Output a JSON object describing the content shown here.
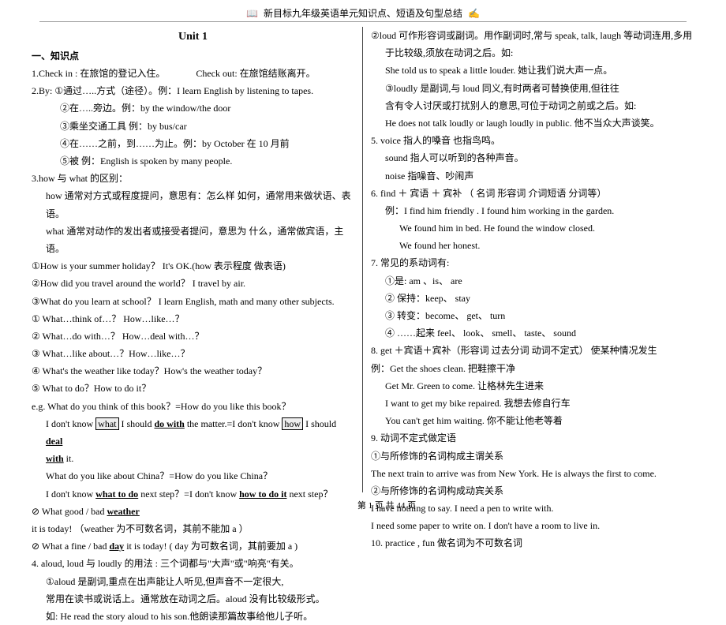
{
  "header": {
    "title": "新目标九年级英语单元知识点、短语及句型总结"
  },
  "unit": "Unit 1",
  "left": {
    "section1": "一、知识点",
    "l1": "1.Check in : 在旅馆的登记入住。",
    "l1b": "Check out: 在旅馆结账离开。",
    "l2": "2.By: ①通过…..方式（途径）。例：I learn English by listening to tapes.",
    "l2a": "②在…..旁边。例：by the window/the door",
    "l2b": "③乘坐交通工具  例：by bus/car",
    "l2c": "④在……之前，到……为止。例：by October 在 10 月前",
    "l2d": "⑤被        例：English is spoken by many people.",
    "l3": "3.how 与 what 的区别：",
    "l3a": "how 通常对方式或程度提问，意思有：怎么样  如何，通常用来做状语、表语。",
    "l3b": "what 通常对动作的发出者或接受者提问，意思为  什么，通常做宾语，主语。",
    "l3c": "①How is your summer holiday？  It's OK.(how 表示程度  做表语)",
    "l3d": "②How did you travel around the world？  I travel by air.",
    "l3e": "③What do you learn at school？   I learn English, math and many other subjects.",
    "l3f": "①    What…think of…？   How…like…？",
    "l3g": "②    What…do with…？   How…deal with…？",
    "l3h": "③    What…like about…？How…like…？",
    "l3i": "④    What's the weather like today？How's the weather today？",
    "l3j": "⑤    What to do？How to do it？",
    "l3k": "e.g. What do you think of this book？=How do you like this book？",
    "l3l_a": "I don't know ",
    "l3l_b": "what",
    "l3l_c": " I should ",
    "l3l_d": "do with",
    "l3l_e": " the matter.=I don't know ",
    "l3l_f": "how",
    "l3l_g": " I should ",
    "l3l_h": "deal",
    "l3m_a": "with",
    "l3m_b": " it.",
    "l3n": "What do you like about China？=How do you like China？",
    "l3o_a": "I don't know ",
    "l3o_b": "what to do",
    "l3o_c": " next step？=I don't know ",
    "l3o_d": "how to do it",
    "l3o_e": " next step？",
    "l3p_a": "What good / bad ",
    "l3p_b": "weather",
    "l3p_c": " it is today!  （weather 为不可数名词，其前不能加  a ）",
    "l3q_a": "What a fine / bad ",
    "l3q_b": "day",
    "l3q_c": " it is today!      ( day 为可数名词，其前要加  a  )",
    "l4": "4. aloud, loud 与 loudly 的用法 : 三个词都与\"大声\"或\"响亮\"有关。",
    "l4a": "①aloud 是副词,重点在出声能让人听见,但声音不一定很大,",
    "l4b": "常用在读书或说话上。通常放在动词之后。aloud 没有比较级形式。",
    "l4c": "如: He read the story aloud to his son.他朗读那篇故事给他儿子听。"
  },
  "right": {
    "r1": "②loud 可作形容词或副词。用作副词时,常与 speak, talk, laugh 等动词连用,多用",
    "r1b": "于比较级,须放在动词之后。如:",
    "r1c": "She told us to speak a little louder.  她让我们说大声一点。",
    "r2": "③loudly 是副词,与 loud 同义,有时两者可替换使用,但往往",
    "r2a": "含有令人讨厌或打扰别人的意思,可位于动词之前或之后。如:",
    "r2b": "He does not talk loudly or laugh loudly in public.  他不当众大声谈笑。",
    "r5": "5. voice  指人的嗓音  也指鸟鸣。",
    "r5a": "sound  指人可以听到的各种声音。",
    "r5b": "noise   指噪音、吵闹声",
    "r6": "6. find ＋ 宾语  ＋ 宾补  （ 名词  形容词  介词短语  分词等）",
    "r6a": "例：I find him friendly .                    I found him working in the garden.",
    "r6b": "We found him in bed.             He found the window closed.",
    "r6c": "We found her honest.",
    "r7": "7. 常见的系动词有:",
    "r7a": "①是: am 、is、  are",
    "r7b": "② 保持：keep、 stay",
    "r7c": "③  转变：become、 get、 turn",
    "r7d": "④  ……起来  feel、 look、 smell、 taste、 sound",
    "r8": "8. get ＋宾语＋宾补（形容词 过去分词 动词不定式）  使某种情况发生",
    "r8a": "例：Get the shoes clean.  把鞋擦干净",
    "r8b": "Get Mr. Green to come.  让格林先生进来",
    "r8c": "I want to get my bike repaired.  我想去修自行车",
    "r8d": "You can't get him waiting.  你不能让他老等着",
    "r9": "9. 动词不定式做定语",
    "r9a": "①与所修饰的名词构成主谓关系",
    "r9b": "The next train to arrive was from New York.  He is always the first to come.",
    "r9c": "②与所修饰的名词构成动宾关系",
    "r9d": "I have nothing to say.                       I need a pen to write with.",
    "r9e": "I need some paper to write on.           I don't have a room to live in.",
    "r10": "10. practice , fun  做名词为不可数名词"
  },
  "footer": {
    "text": "第  1  页  共  44  页"
  }
}
